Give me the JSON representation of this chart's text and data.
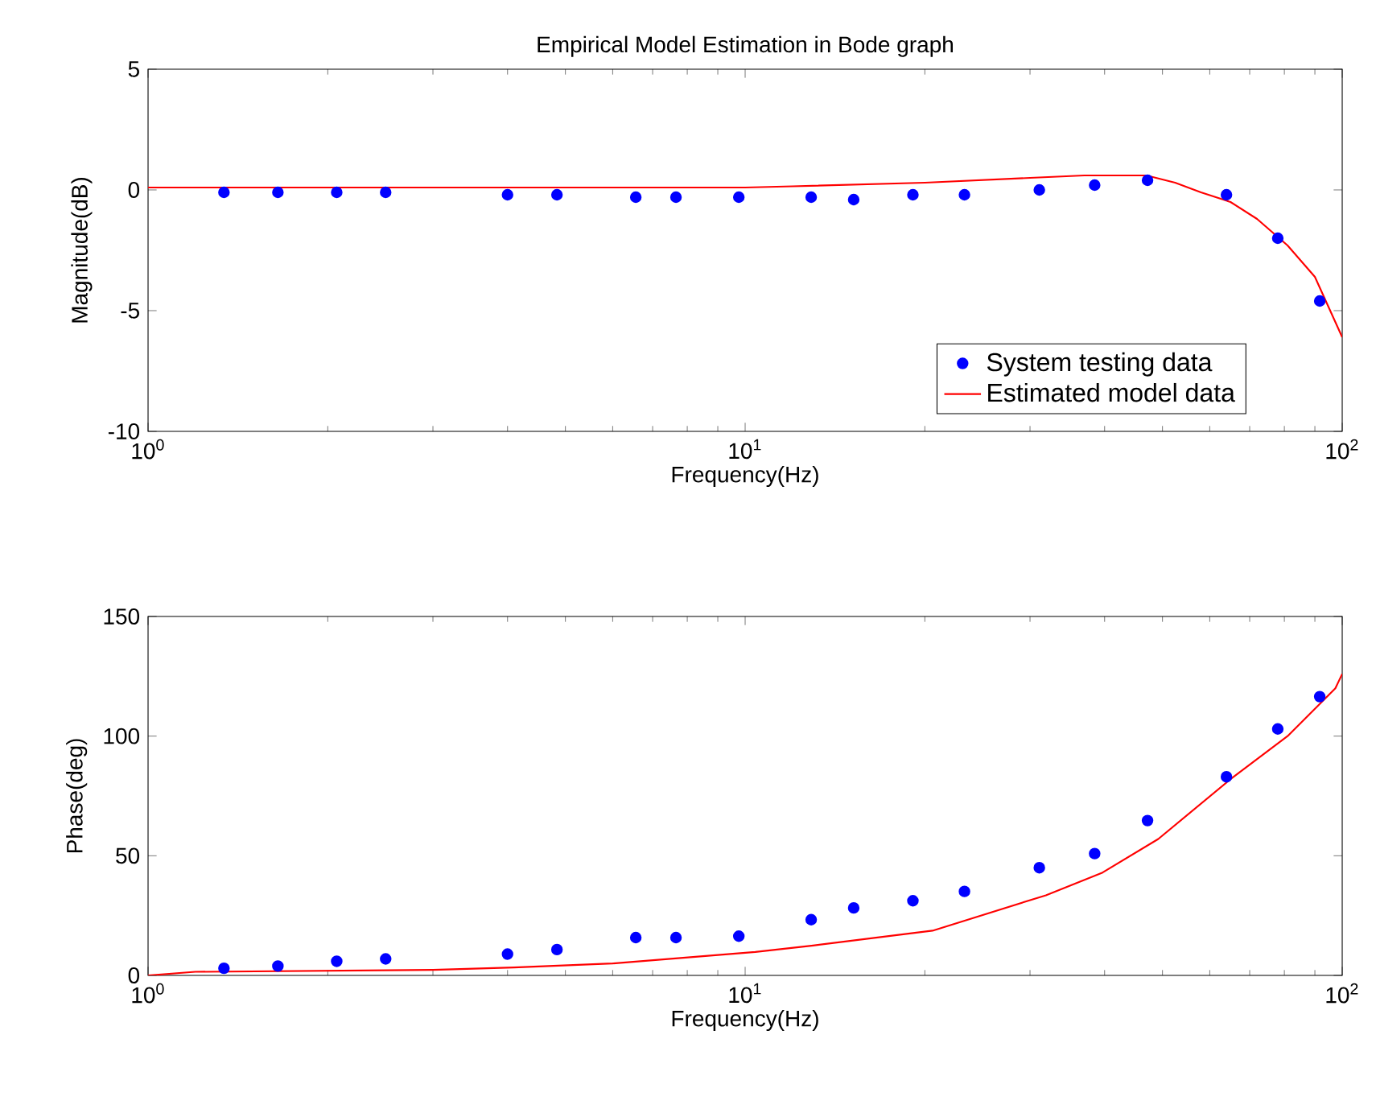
{
  "chart_data": [
    {
      "type": "line",
      "title": "Empirical Model Estimation in Bode graph",
      "xlabel": "Frequency(Hz)",
      "ylabel": "Magnitude(dB)",
      "log": "x",
      "grid": false,
      "legend": "bottom right",
      "xlim": [
        1,
        100
      ],
      "xticks": [
        {
          "value": 1,
          "label": "10$^{0}$"
        },
        {
          "value": 10,
          "label": "10$^{1}$"
        },
        {
          "value": 100,
          "label": "10$^{2}$"
        }
      ],
      "ylim": [
        -10,
        5
      ],
      "yticks": [
        -10,
        -5,
        0,
        5
      ],
      "x": [
        1.34,
        1.65,
        2.07,
        2.5,
        4.0,
        4.84,
        6.56,
        7.66,
        9.76,
        12.9,
        15.2,
        19.1,
        23.3,
        31.1,
        38.5,
        47.2,
        64.0,
        78.0,
        91.7
      ],
      "series": [
        {
          "name": "System testing data",
          "type": "scatter",
          "color": "#0000ff",
          "values": [
            -0.1,
            -0.1,
            -0.1,
            -0.1,
            -0.2,
            -0.2,
            -0.3,
            -0.3,
            -0.3,
            -0.3,
            -0.4,
            -0.2,
            -0.2,
            0.0,
            0.2,
            0.4,
            -0.2,
            -2.0,
            -4.6
          ]
        },
        {
          "name": "Estimated model data",
          "color": "#ff0000",
          "x": [
            1,
            5,
            10,
            12,
            20,
            30,
            37,
            47,
            52.5,
            58,
            65,
            72,
            81,
            90,
            100
          ],
          "values": [
            0.1,
            0.1,
            0.1,
            0.15,
            0.3,
            0.5,
            0.6,
            0.6,
            0.3,
            -0.1,
            -0.5,
            -1.2,
            -2.3,
            -3.6,
            -6.1
          ]
        }
      ]
    },
    {
      "type": "line",
      "xlabel": "Frequency(Hz)",
      "ylabel": "Phase(deg)",
      "log": "x",
      "grid": false,
      "xlim": [
        1,
        100
      ],
      "xticks": [
        {
          "value": 1,
          "label": "10$^{0}$"
        },
        {
          "value": 10,
          "label": "10$^{1}$"
        },
        {
          "value": 100,
          "label": "10$^{2}$"
        }
      ],
      "ylim": [
        0,
        150
      ],
      "yticks": [
        0,
        50,
        100,
        150
      ],
      "x": [
        1.34,
        1.65,
        2.07,
        2.5,
        4.0,
        4.84,
        6.56,
        7.66,
        9.76,
        12.9,
        15.2,
        19.1,
        23.3,
        31.1,
        38.5,
        47.2,
        64.0,
        78.0,
        91.7
      ],
      "series": [
        {
          "type": "scatter",
          "color": "#0000ff",
          "values": [
            3.0,
            3.9,
            5.9,
            6.9,
            8.9,
            10.8,
            15.8,
            15.8,
            16.4,
            23.3,
            28.2,
            31.2,
            35.1,
            45.0,
            50.9,
            64.7,
            83.0,
            103,
            116.5
          ]
        },
        {
          "color": "#ff0000",
          "x": [
            1,
            1.2,
            3,
            4.1,
            6,
            10.4,
            13,
            20.6,
            31.9,
            39.7,
            49.2,
            65,
            81,
            97.4,
            100
          ],
          "values": [
            0,
            1.5,
            2.3,
            3.3,
            5,
            9.8,
            12.5,
            18.7,
            33.5,
            43,
            57,
            82,
            100,
            120,
            126
          ]
        }
      ]
    }
  ]
}
